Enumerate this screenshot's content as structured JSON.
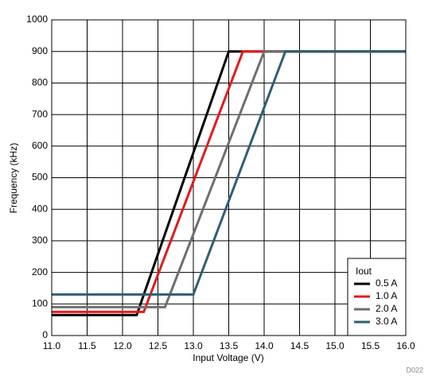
{
  "chart_data": {
    "type": "line",
    "x_label": "Input Voltage (V)",
    "y_label": "Frequency (kHz)",
    "annotation": "D022",
    "legend_title": "Iout",
    "legend": "lower right",
    "grid": true,
    "xlim": [
      11,
      16
    ],
    "ylim": [
      0,
      1000
    ],
    "xticks": [
      {
        "value": 11,
        "label": "11.0"
      },
      11.5,
      {
        "value": 12,
        "label": "12.0"
      },
      12.5,
      {
        "value": 13,
        "label": "13.0"
      },
      13.5,
      {
        "value": 14,
        "label": "14.0"
      },
      14.5,
      {
        "value": 15,
        "label": "15.0"
      },
      15.5,
      {
        "value": 16,
        "label": "16.0"
      }
    ],
    "yticks": [
      0,
      100,
      200,
      300,
      400,
      500,
      600,
      700,
      800,
      900,
      1000
    ],
    "series": [
      {
        "name": "0.5 A",
        "color": "#000000",
        "x": [
          11,
          12.2,
          13.5,
          16
        ],
        "values": [
          65,
          65,
          900,
          900
        ]
      },
      {
        "name": "1.0 A",
        "color": "#e31a1c",
        "x": [
          11,
          12.3,
          13.7,
          16
        ],
        "values": [
          75,
          75,
          900,
          900
        ]
      },
      {
        "name": "2.0 A",
        "color": "#6e6e6e",
        "x": [
          11,
          12.6,
          14.0,
          16
        ],
        "values": [
          90,
          90,
          900,
          900
        ]
      },
      {
        "name": "3.0 A",
        "color": "#2e5f73",
        "x": [
          11,
          13.0,
          14.3,
          16
        ],
        "values": [
          130,
          130,
          900,
          900
        ]
      }
    ]
  }
}
